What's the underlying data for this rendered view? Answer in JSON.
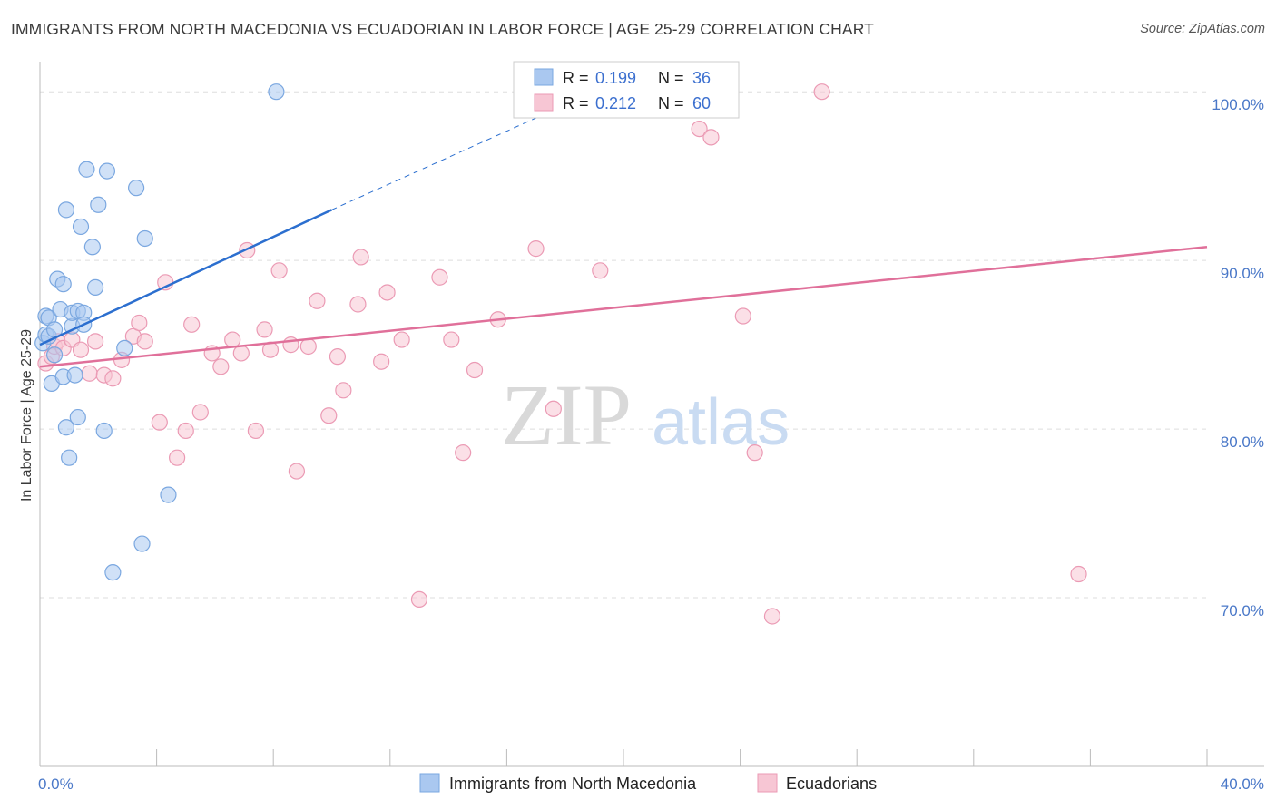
{
  "title": "IMMIGRANTS FROM NORTH MACEDONIA VS ECUADORIAN IN LABOR FORCE | AGE 25-29 CORRELATION CHART",
  "source": "Source: ZipAtlas.com",
  "watermark": {
    "zip": "ZIP",
    "atlas": "atlas"
  },
  "colors": {
    "blue_fill": "#aac8f0",
    "blue_stroke": "#7aa7e0",
    "blue_line": "#2c6fcf",
    "pink_fill": "#f7c6d4",
    "pink_stroke": "#eb9ab4",
    "pink_line": "#e0709a",
    "grid": "#dddddd",
    "tick_text": "#4a78c8"
  },
  "legend": {
    "rows": [
      {
        "r_label": "R = ",
        "r_value": "0.199",
        "n_label": "N = ",
        "n_value": "36"
      },
      {
        "r_label": "R = ",
        "r_value": "0.212",
        "n_label": "N = ",
        "n_value": "60"
      }
    ]
  },
  "chart_data": {
    "type": "scatter",
    "xlabel": "",
    "ylabel": "In Labor Force | Age 25-29",
    "xlim": [
      0,
      40
    ],
    "ylim": [
      60,
      102
    ],
    "x_tick_labels": [
      {
        "value": 0,
        "label": "0.0%"
      },
      {
        "value": 40,
        "label": "40.0%"
      }
    ],
    "y_tick_labels": [
      {
        "value": 70,
        "label": "70.0%"
      },
      {
        "value": 80,
        "label": "80.0%"
      },
      {
        "value": 90,
        "label": "90.0%"
      },
      {
        "value": 100,
        "label": "100.0%"
      }
    ],
    "series": [
      {
        "name": "Immigrants from North Macedonia",
        "color": "blue",
        "points": [
          [
            0.1,
            85.1
          ],
          [
            0.2,
            86.7
          ],
          [
            0.2,
            85.6
          ],
          [
            0.3,
            85.5
          ],
          [
            0.3,
            86.6
          ],
          [
            0.4,
            82.7
          ],
          [
            0.5,
            84.4
          ],
          [
            0.5,
            85.9
          ],
          [
            0.6,
            88.9
          ],
          [
            0.7,
            87.1
          ],
          [
            0.8,
            83.1
          ],
          [
            0.8,
            88.6
          ],
          [
            0.9,
            80.1
          ],
          [
            0.9,
            93.0
          ],
          [
            1.0,
            78.3
          ],
          [
            1.1,
            86.1
          ],
          [
            1.1,
            86.9
          ],
          [
            1.2,
            83.2
          ],
          [
            1.3,
            87.0
          ],
          [
            1.3,
            80.7
          ],
          [
            1.4,
            92.0
          ],
          [
            1.5,
            86.9
          ],
          [
            1.5,
            86.2
          ],
          [
            1.6,
            95.4
          ],
          [
            1.8,
            90.8
          ],
          [
            1.9,
            88.4
          ],
          [
            2.0,
            93.3
          ],
          [
            2.2,
            79.9
          ],
          [
            2.3,
            95.3
          ],
          [
            2.5,
            71.5
          ],
          [
            2.9,
            84.8
          ],
          [
            3.3,
            94.3
          ],
          [
            3.5,
            73.2
          ],
          [
            3.6,
            91.3
          ],
          [
            4.4,
            76.1
          ],
          [
            8.1,
            100.0
          ]
        ],
        "trend": {
          "x0": 0,
          "y0": 85.0,
          "x1": 10.0,
          "y1": 93.0,
          "dashed_to": [
            19.0,
            100.0
          ]
        }
      },
      {
        "name": "Ecuadorians",
        "color": "pink",
        "points": [
          [
            0.2,
            83.9
          ],
          [
            0.4,
            84.3
          ],
          [
            0.5,
            84.9
          ],
          [
            0.6,
            85.2
          ],
          [
            0.8,
            84.8
          ],
          [
            1.1,
            85.3
          ],
          [
            1.4,
            84.7
          ],
          [
            1.7,
            83.3
          ],
          [
            1.9,
            85.2
          ],
          [
            2.2,
            83.2
          ],
          [
            2.5,
            83.0
          ],
          [
            2.8,
            84.1
          ],
          [
            3.2,
            85.5
          ],
          [
            3.4,
            86.3
          ],
          [
            3.6,
            85.2
          ],
          [
            4.1,
            80.4
          ],
          [
            4.3,
            88.7
          ],
          [
            4.7,
            78.3
          ],
          [
            5.0,
            79.9
          ],
          [
            5.2,
            86.2
          ],
          [
            5.5,
            81.0
          ],
          [
            5.9,
            84.5
          ],
          [
            6.2,
            83.7
          ],
          [
            6.6,
            85.3
          ],
          [
            6.9,
            84.5
          ],
          [
            7.1,
            90.6
          ],
          [
            7.4,
            79.9
          ],
          [
            7.7,
            85.9
          ],
          [
            7.9,
            84.7
          ],
          [
            8.2,
            89.4
          ],
          [
            8.6,
            85.0
          ],
          [
            8.8,
            77.5
          ],
          [
            9.2,
            84.9
          ],
          [
            9.5,
            87.6
          ],
          [
            9.9,
            80.8
          ],
          [
            10.2,
            84.3
          ],
          [
            10.4,
            82.3
          ],
          [
            10.9,
            87.4
          ],
          [
            11.0,
            90.2
          ],
          [
            11.7,
            84.0
          ],
          [
            11.9,
            88.1
          ],
          [
            12.4,
            85.3
          ],
          [
            13.0,
            69.9
          ],
          [
            13.7,
            89.0
          ],
          [
            14.1,
            85.3
          ],
          [
            14.5,
            78.6
          ],
          [
            14.9,
            83.5
          ],
          [
            15.7,
            86.5
          ],
          [
            17.0,
            90.7
          ],
          [
            17.6,
            81.2
          ],
          [
            18.6,
            100.0
          ],
          [
            19.2,
            89.4
          ],
          [
            21.0,
            100.0
          ],
          [
            22.6,
            97.8
          ],
          [
            23.0,
            97.3
          ],
          [
            24.1,
            86.7
          ],
          [
            24.5,
            78.6
          ],
          [
            25.1,
            68.9
          ],
          [
            26.8,
            100.0
          ],
          [
            35.6,
            71.4
          ]
        ],
        "trend": {
          "x0": 0,
          "y0": 83.7,
          "x1": 40.0,
          "y1": 90.8
        }
      }
    ]
  },
  "bottom_legend": [
    {
      "label": "Immigrants from North Macedonia",
      "color": "blue"
    },
    {
      "label": "Ecuadorians",
      "color": "pink"
    }
  ]
}
